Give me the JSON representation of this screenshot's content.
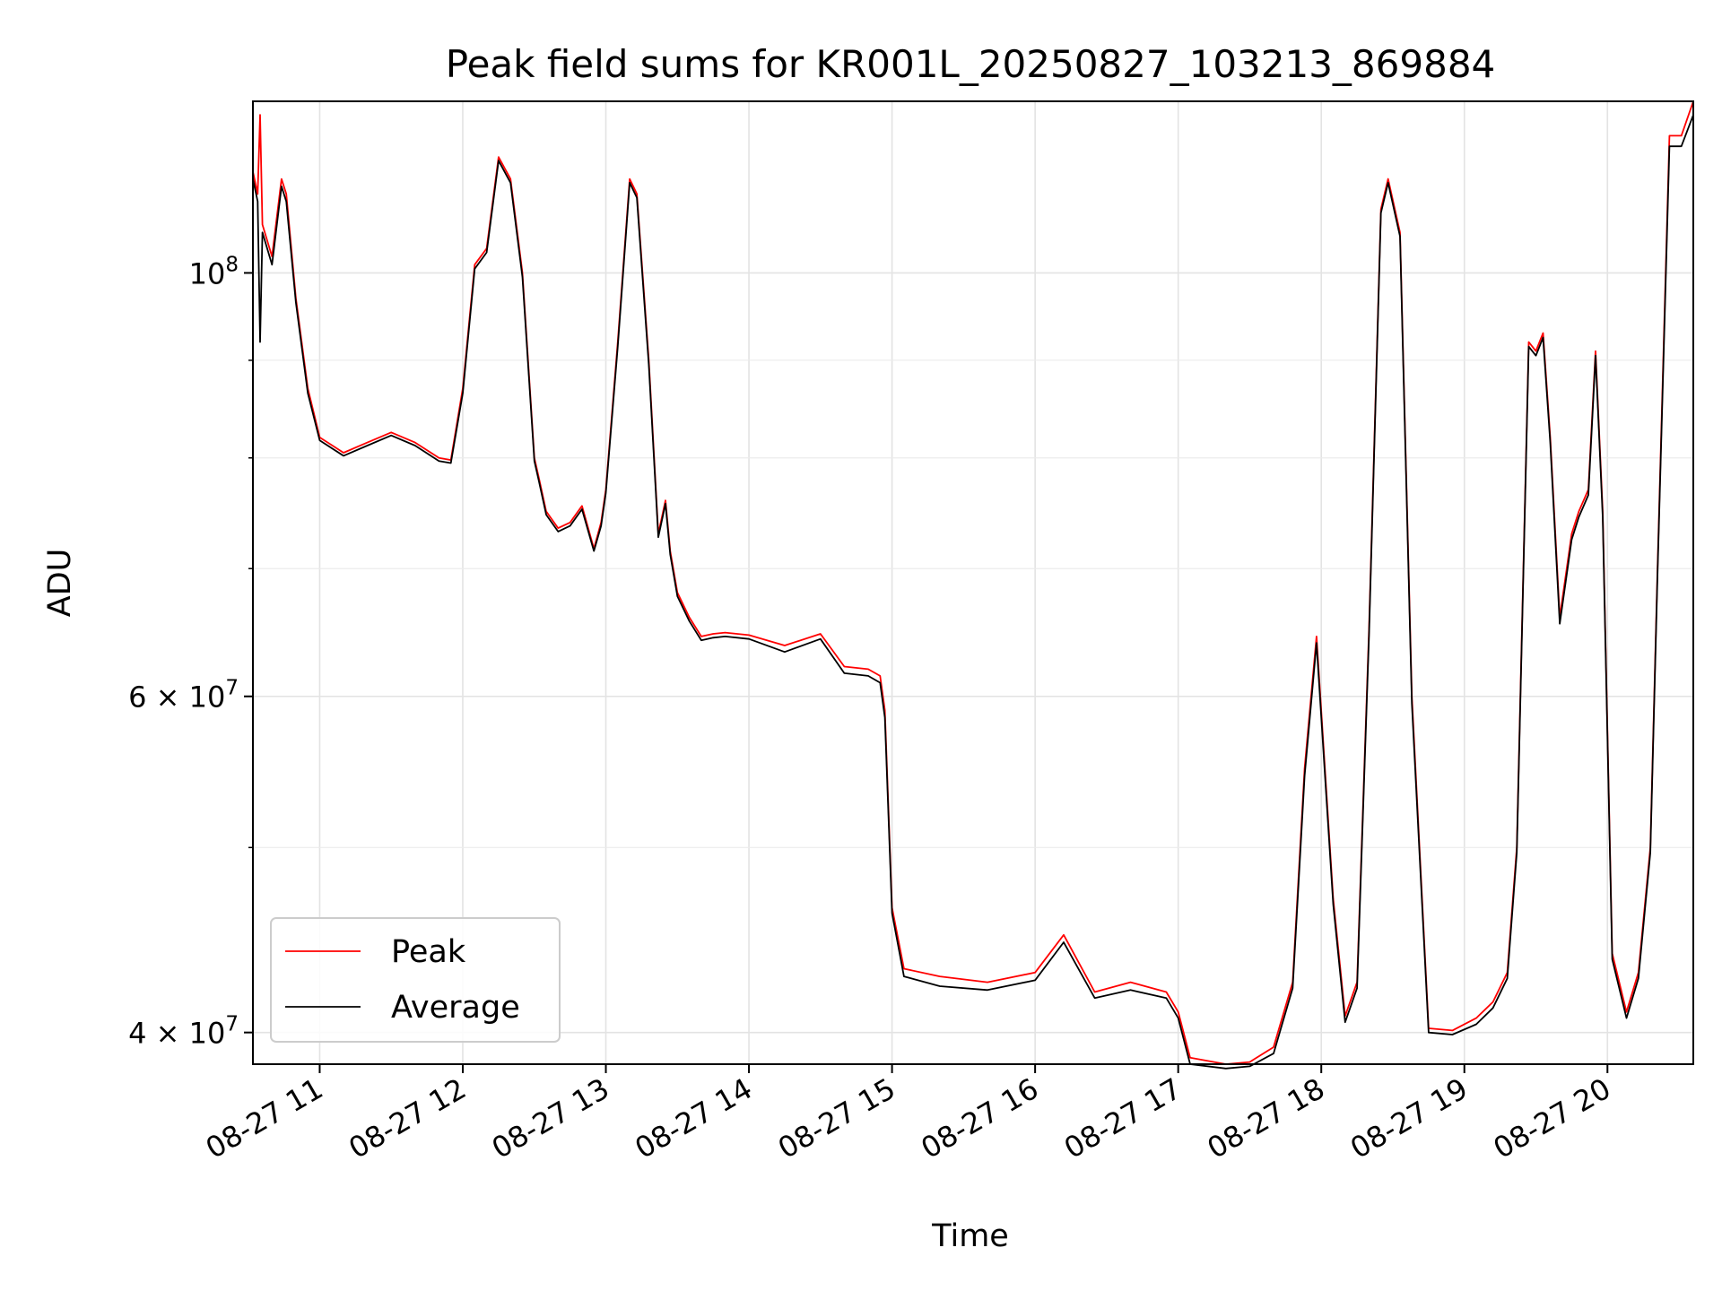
{
  "chart_data": {
    "type": "line",
    "title": "Peak field sums for KR001L_20250827_103213_869884",
    "xlabel": "Time",
    "ylabel": "ADU",
    "y_scale": "log",
    "ylim": [
      38500000,
      123000000
    ],
    "xlim": [
      "2025-08-27 10:32",
      "2025-08-27 20:36"
    ],
    "grid": true,
    "legend_position": "lower-left",
    "x_ticks": [
      {
        "t": "2025-08-27 11:00",
        "label": "08-27 11"
      },
      {
        "t": "2025-08-27 12:00",
        "label": "08-27 12"
      },
      {
        "t": "2025-08-27 13:00",
        "label": "08-27 13"
      },
      {
        "t": "2025-08-27 14:00",
        "label": "08-27 14"
      },
      {
        "t": "2025-08-27 15:00",
        "label": "08-27 15"
      },
      {
        "t": "2025-08-27 16:00",
        "label": "08-27 16"
      },
      {
        "t": "2025-08-27 17:00",
        "label": "08-27 17"
      },
      {
        "t": "2025-08-27 18:00",
        "label": "08-27 18"
      },
      {
        "t": "2025-08-27 19:00",
        "label": "08-27 19"
      },
      {
        "t": "2025-08-27 20:00",
        "label": "08-27 20"
      }
    ],
    "y_major_ticks": [
      {
        "value": 40000000,
        "base": "4 × 10",
        "exp": "7"
      },
      {
        "value": 60000000,
        "base": "6 × 10",
        "exp": "7"
      },
      {
        "value": 100000000,
        "base": "10",
        "exp": "8"
      }
    ],
    "y_minor_grid": [
      50000000,
      70000000,
      80000000,
      90000000
    ],
    "series": [
      {
        "name": "Peak",
        "color": "#ff0000",
        "x": [
          "2025-08-27 10:32",
          "2025-08-27 10:34",
          "2025-08-27 10:35",
          "2025-08-27 10:36",
          "2025-08-27 10:40",
          "2025-08-27 10:44",
          "2025-08-27 10:46",
          "2025-08-27 10:50",
          "2025-08-27 10:55",
          "2025-08-27 11:00",
          "2025-08-27 11:10",
          "2025-08-27 11:20",
          "2025-08-27 11:30",
          "2025-08-27 11:40",
          "2025-08-27 11:50",
          "2025-08-27 11:55",
          "2025-08-27 12:00",
          "2025-08-27 12:05",
          "2025-08-27 12:10",
          "2025-08-27 12:15",
          "2025-08-27 12:20",
          "2025-08-27 12:25",
          "2025-08-27 12:30",
          "2025-08-27 12:32",
          "2025-08-27 12:35",
          "2025-08-27 12:40",
          "2025-08-27 12:45",
          "2025-08-27 12:50",
          "2025-08-27 12:55",
          "2025-08-27 12:58",
          "2025-08-27 13:00",
          "2025-08-27 13:05",
          "2025-08-27 13:10",
          "2025-08-27 13:13",
          "2025-08-27 13:18",
          "2025-08-27 13:22",
          "2025-08-27 13:25",
          "2025-08-27 13:27",
          "2025-08-27 13:30",
          "2025-08-27 13:35",
          "2025-08-27 13:40",
          "2025-08-27 13:45",
          "2025-08-27 13:50",
          "2025-08-27 14:00",
          "2025-08-27 14:15",
          "2025-08-27 14:30",
          "2025-08-27 14:40",
          "2025-08-27 14:50",
          "2025-08-27 14:55",
          "2025-08-27 14:57",
          "2025-08-27 15:00",
          "2025-08-27 15:05",
          "2025-08-27 15:20",
          "2025-08-27 15:40",
          "2025-08-27 16:00",
          "2025-08-27 16:12",
          "2025-08-27 16:25",
          "2025-08-27 16:40",
          "2025-08-27 16:55",
          "2025-08-27 17:00",
          "2025-08-27 17:05",
          "2025-08-27 17:20",
          "2025-08-27 17:30",
          "2025-08-27 17:40",
          "2025-08-27 17:48",
          "2025-08-27 17:53",
          "2025-08-27 17:58",
          "2025-08-27 18:05",
          "2025-08-27 18:10",
          "2025-08-27 18:15",
          "2025-08-27 18:20",
          "2025-08-27 18:25",
          "2025-08-27 18:28",
          "2025-08-27 18:33",
          "2025-08-27 18:38",
          "2025-08-27 18:45",
          "2025-08-27 18:55",
          "2025-08-27 19:05",
          "2025-08-27 19:12",
          "2025-08-27 19:18",
          "2025-08-27 19:22",
          "2025-08-27 19:27",
          "2025-08-27 19:30",
          "2025-08-27 19:33",
          "2025-08-27 19:36",
          "2025-08-27 19:40",
          "2025-08-27 19:45",
          "2025-08-27 19:48",
          "2025-08-27 19:52",
          "2025-08-27 19:55",
          "2025-08-27 19:58",
          "2025-08-27 20:02",
          "2025-08-27 20:08",
          "2025-08-27 20:13",
          "2025-08-27 20:18",
          "2025-08-27 20:21",
          "2025-08-27 20:26",
          "2025-08-27 20:31",
          "2025-08-27 20:36"
        ],
        "y": [
          113000000,
          110000000,
          121000000,
          106000000,
          102000000,
          112000000,
          110000000,
          97000000,
          87000000,
          82000000,
          80500000,
          81500000,
          82500000,
          81500000,
          80000000,
          79800000,
          87000000,
          101000000,
          103000000,
          115000000,
          112000000,
          100000000,
          80000000,
          78000000,
          75000000,
          73500000,
          74000000,
          75500000,
          71700000,
          74000000,
          77000000,
          92000000,
          112000000,
          110000000,
          90000000,
          73000000,
          76000000,
          71500000,
          68000000,
          66000000,
          64500000,
          64700000,
          64800000,
          64600000,
          63800000,
          64700000,
          62200000,
          62000000,
          61500000,
          59000000,
          46500000,
          43200000,
          42800000,
          42500000,
          43000000,
          45000000,
          42000000,
          42500000,
          42000000,
          41000000,
          38800000,
          38500000,
          38600000,
          39300000,
          42500000,
          55000000,
          64500000,
          47000000,
          40800000,
          42500000,
          65000000,
          108000000,
          112000000,
          105000000,
          60000000,
          40200000,
          40100000,
          40700000,
          41500000,
          43000000,
          50000000,
          92000000,
          91000000,
          93000000,
          82000000,
          66000000,
          73000000,
          75000000,
          77000000,
          91000000,
          75000000,
          44000000,
          41000000,
          43000000,
          50000000,
          70000000,
          118000000,
          118000000,
          123000000
        ]
      },
      {
        "name": "Average",
        "color": "#000000",
        "x": [
          "2025-08-27 10:32",
          "2025-08-27 10:34",
          "2025-08-27 10:35",
          "2025-08-27 10:36",
          "2025-08-27 10:40",
          "2025-08-27 10:44",
          "2025-08-27 10:46",
          "2025-08-27 10:50",
          "2025-08-27 10:55",
          "2025-08-27 11:00",
          "2025-08-27 11:10",
          "2025-08-27 11:20",
          "2025-08-27 11:30",
          "2025-08-27 11:40",
          "2025-08-27 11:50",
          "2025-08-27 11:55",
          "2025-08-27 12:00",
          "2025-08-27 12:05",
          "2025-08-27 12:10",
          "2025-08-27 12:15",
          "2025-08-27 12:20",
          "2025-08-27 12:25",
          "2025-08-27 12:30",
          "2025-08-27 12:32",
          "2025-08-27 12:35",
          "2025-08-27 12:40",
          "2025-08-27 12:45",
          "2025-08-27 12:50",
          "2025-08-27 12:55",
          "2025-08-27 12:58",
          "2025-08-27 13:00",
          "2025-08-27 13:05",
          "2025-08-27 13:10",
          "2025-08-27 13:13",
          "2025-08-27 13:18",
          "2025-08-27 13:22",
          "2025-08-27 13:25",
          "2025-08-27 13:27",
          "2025-08-27 13:30",
          "2025-08-27 13:35",
          "2025-08-27 13:40",
          "2025-08-27 13:45",
          "2025-08-27 13:50",
          "2025-08-27 14:00",
          "2025-08-27 14:15",
          "2025-08-27 14:30",
          "2025-08-27 14:40",
          "2025-08-27 14:50",
          "2025-08-27 14:55",
          "2025-08-27 14:57",
          "2025-08-27 15:00",
          "2025-08-27 15:05",
          "2025-08-27 15:20",
          "2025-08-27 15:40",
          "2025-08-27 16:00",
          "2025-08-27 16:12",
          "2025-08-27 16:25",
          "2025-08-27 16:40",
          "2025-08-27 16:55",
          "2025-08-27 17:00",
          "2025-08-27 17:05",
          "2025-08-27 17:20",
          "2025-08-27 17:30",
          "2025-08-27 17:40",
          "2025-08-27 17:48",
          "2025-08-27 17:53",
          "2025-08-27 17:58",
          "2025-08-27 18:05",
          "2025-08-27 18:10",
          "2025-08-27 18:15",
          "2025-08-27 18:20",
          "2025-08-27 18:25",
          "2025-08-27 18:28",
          "2025-08-27 18:33",
          "2025-08-27 18:38",
          "2025-08-27 18:45",
          "2025-08-27 18:55",
          "2025-08-27 19:05",
          "2025-08-27 19:12",
          "2025-08-27 19:18",
          "2025-08-27 19:22",
          "2025-08-27 19:27",
          "2025-08-27 19:30",
          "2025-08-27 19:33",
          "2025-08-27 19:36",
          "2025-08-27 19:40",
          "2025-08-27 19:45",
          "2025-08-27 19:48",
          "2025-08-27 19:52",
          "2025-08-27 19:55",
          "2025-08-27 19:58",
          "2025-08-27 20:02",
          "2025-08-27 20:08",
          "2025-08-27 20:13",
          "2025-08-27 20:18",
          "2025-08-27 20:21",
          "2025-08-27 20:26",
          "2025-08-27 20:31",
          "2025-08-27 20:36"
        ],
        "y": [
          112000000,
          109000000,
          92000000,
          105000000,
          101000000,
          111000000,
          109000000,
          96500000,
          86500000,
          81700000,
          80200000,
          81200000,
          82200000,
          81200000,
          79700000,
          79500000,
          86500000,
          100500000,
          102500000,
          114500000,
          111500000,
          99500000,
          79700000,
          77700000,
          74700000,
          73200000,
          73700000,
          75200000,
          71500000,
          73700000,
          76700000,
          91500000,
          111500000,
          109500000,
          89500000,
          72700000,
          75700000,
          71200000,
          67700000,
          65700000,
          64200000,
          64400000,
          64500000,
          64300000,
          63300000,
          64300000,
          61700000,
          61500000,
          61000000,
          58500000,
          46200000,
          42800000,
          42300000,
          42100000,
          42600000,
          44600000,
          41700000,
          42100000,
          41700000,
          40700000,
          38500000,
          38300000,
          38400000,
          39000000,
          42200000,
          54500000,
          64000000,
          46700000,
          40500000,
          42200000,
          64500000,
          107500000,
          111500000,
          104500000,
          59500000,
          40000000,
          39900000,
          40400000,
          41200000,
          42700000,
          49700000,
          91500000,
          90500000,
          92500000,
          81500000,
          65500000,
          72500000,
          74500000,
          76500000,
          90500000,
          74500000,
          43700000,
          40700000,
          42700000,
          49700000,
          69500000,
          116500000,
          116500000,
          121000000
        ]
      }
    ]
  }
}
